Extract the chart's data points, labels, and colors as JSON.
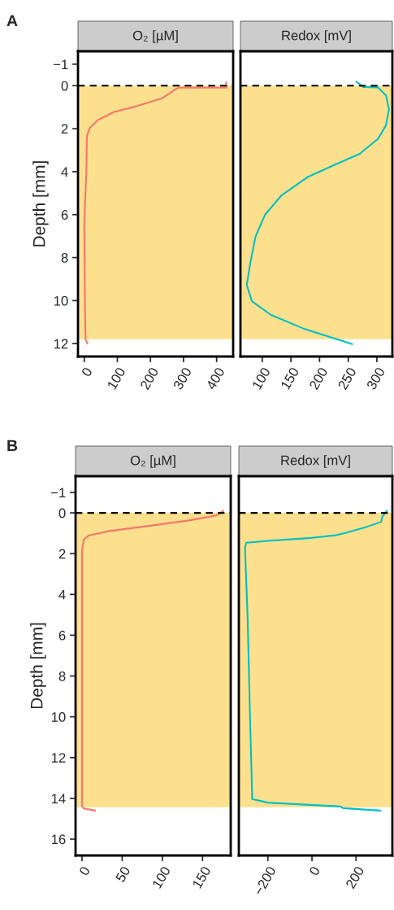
{
  "chart_data": [
    {
      "type": "line",
      "title": "O₂ [µM]",
      "ylabel": "Depth [mm]",
      "annotations": [
        "A"
      ],
      "series": [
        {
          "color": "#f8766d",
          "x": [
            429,
            429,
            286,
            278,
            235,
            155,
            90,
            41,
            16,
            8,
            6.5,
            0,
            2,
            4,
            10
          ],
          "values": [
            -0.16,
            0.09,
            0.09,
            0.15,
            0.59,
            0.97,
            1.22,
            1.6,
            1.98,
            2.35,
            3.86,
            6.4,
            10.15,
            11.8,
            12.0
          ]
        }
      ],
      "xlim": [
        -19,
        450
      ],
      "xticks": [
        0,
        100,
        200,
        300,
        400
      ],
      "ylim": [
        12.6,
        -1.6
      ],
      "yticks": [
        {
          "value": -1,
          "label": "−1"
        },
        0,
        2,
        4,
        6,
        8,
        10,
        12
      ],
      "ref_lines": [
        {
          "axis": "y",
          "value": 0,
          "color": "#000000",
          "line_style": "dashed"
        }
      ],
      "bands": [
        {
          "axis": "y",
          "from": 0,
          "to": 11.8,
          "color": "#fce08e"
        }
      ]
    },
    {
      "type": "line",
      "title": "Redox [mV]",
      "series": [
        {
          "color": "#00bfc4",
          "x": [
            264,
            276,
            302,
            316,
            321,
            316,
            302,
            270,
            227,
            180,
            133,
            105,
            88.5,
            79,
            73,
            82,
            115,
            171,
            257
          ],
          "values": [
            -0.19,
            0.06,
            0.08,
            0.46,
            1.09,
            1.84,
            2.47,
            3.17,
            3.67,
            4.24,
            5.12,
            6.0,
            7.0,
            8.27,
            9.27,
            10.03,
            10.66,
            11.29,
            12.02
          ]
        }
      ],
      "xlim": [
        62,
        327
      ],
      "xticks": [
        100,
        150,
        200,
        250,
        300
      ],
      "ylim": [
        12.6,
        -1.6
      ],
      "tick_labels": "x",
      "ref_lines": [
        {
          "axis": "y",
          "value": 0,
          "color": "#000000",
          "line_style": "dashed"
        }
      ],
      "bands": [
        {
          "axis": "y",
          "from": 0,
          "to": 11.8,
          "color": "#fce08e"
        }
      ]
    },
    {
      "type": "line",
      "title": "O₂ [µM]",
      "ylabel": "Depth [mm]",
      "annotations": [
        "B"
      ],
      "series": [
        {
          "color": "#f8766d",
          "x": [
            176,
            167,
            133,
            83,
            32.6,
            9,
            2.4,
            0,
            0,
            2.4,
            16.5
          ],
          "values": [
            -0.1,
            0.13,
            0.37,
            0.64,
            0.9,
            1.1,
            1.3,
            1.84,
            14.37,
            14.5,
            14.6
          ]
        }
      ],
      "xlim": [
        -8,
        185
      ],
      "xticks": [
        0,
        50,
        100,
        150
      ],
      "ylim": [
        16.8,
        -1.8
      ],
      "yticks": [
        {
          "value": -1,
          "label": "−1"
        },
        0,
        2,
        4,
        6,
        8,
        10,
        12,
        14,
        16
      ],
      "ref_lines": [
        {
          "axis": "y",
          "value": 0,
          "color": "#000000",
          "line_style": "dashed"
        }
      ],
      "bands": [
        {
          "axis": "y",
          "from": 0,
          "to": 14.44,
          "color": "#fce08e"
        }
      ]
    },
    {
      "type": "line",
      "title": "Redox [mV]",
      "series": [
        {
          "color": "#00bfc4",
          "x": [
            340.6,
            320,
            314,
            253,
            155,
            106,
            -17,
            -200,
            -298,
            -304,
            -292,
            -280,
            -271,
            -200,
            130,
            142,
            311
          ],
          "values": [
            -0.1,
            0.17,
            0.44,
            0.67,
            0.97,
            1.1,
            1.24,
            1.37,
            1.46,
            1.71,
            5.17,
            10.5,
            14.04,
            14.21,
            14.4,
            14.48,
            14.6
          ]
        }
      ],
      "xlim": [
        -332,
        365
      ],
      "xticks": [
        {
          "value": -200,
          "label": "−200"
        },
        0,
        200
      ],
      "ylim": [
        16.8,
        -1.8
      ],
      "tick_labels": "x",
      "ref_lines": [
        {
          "axis": "y",
          "value": 0,
          "color": "#000000",
          "line_style": "dashed"
        }
      ],
      "bands": [
        {
          "axis": "y",
          "from": 0,
          "to": 14.44,
          "color": "#fce08e"
        }
      ]
    }
  ]
}
